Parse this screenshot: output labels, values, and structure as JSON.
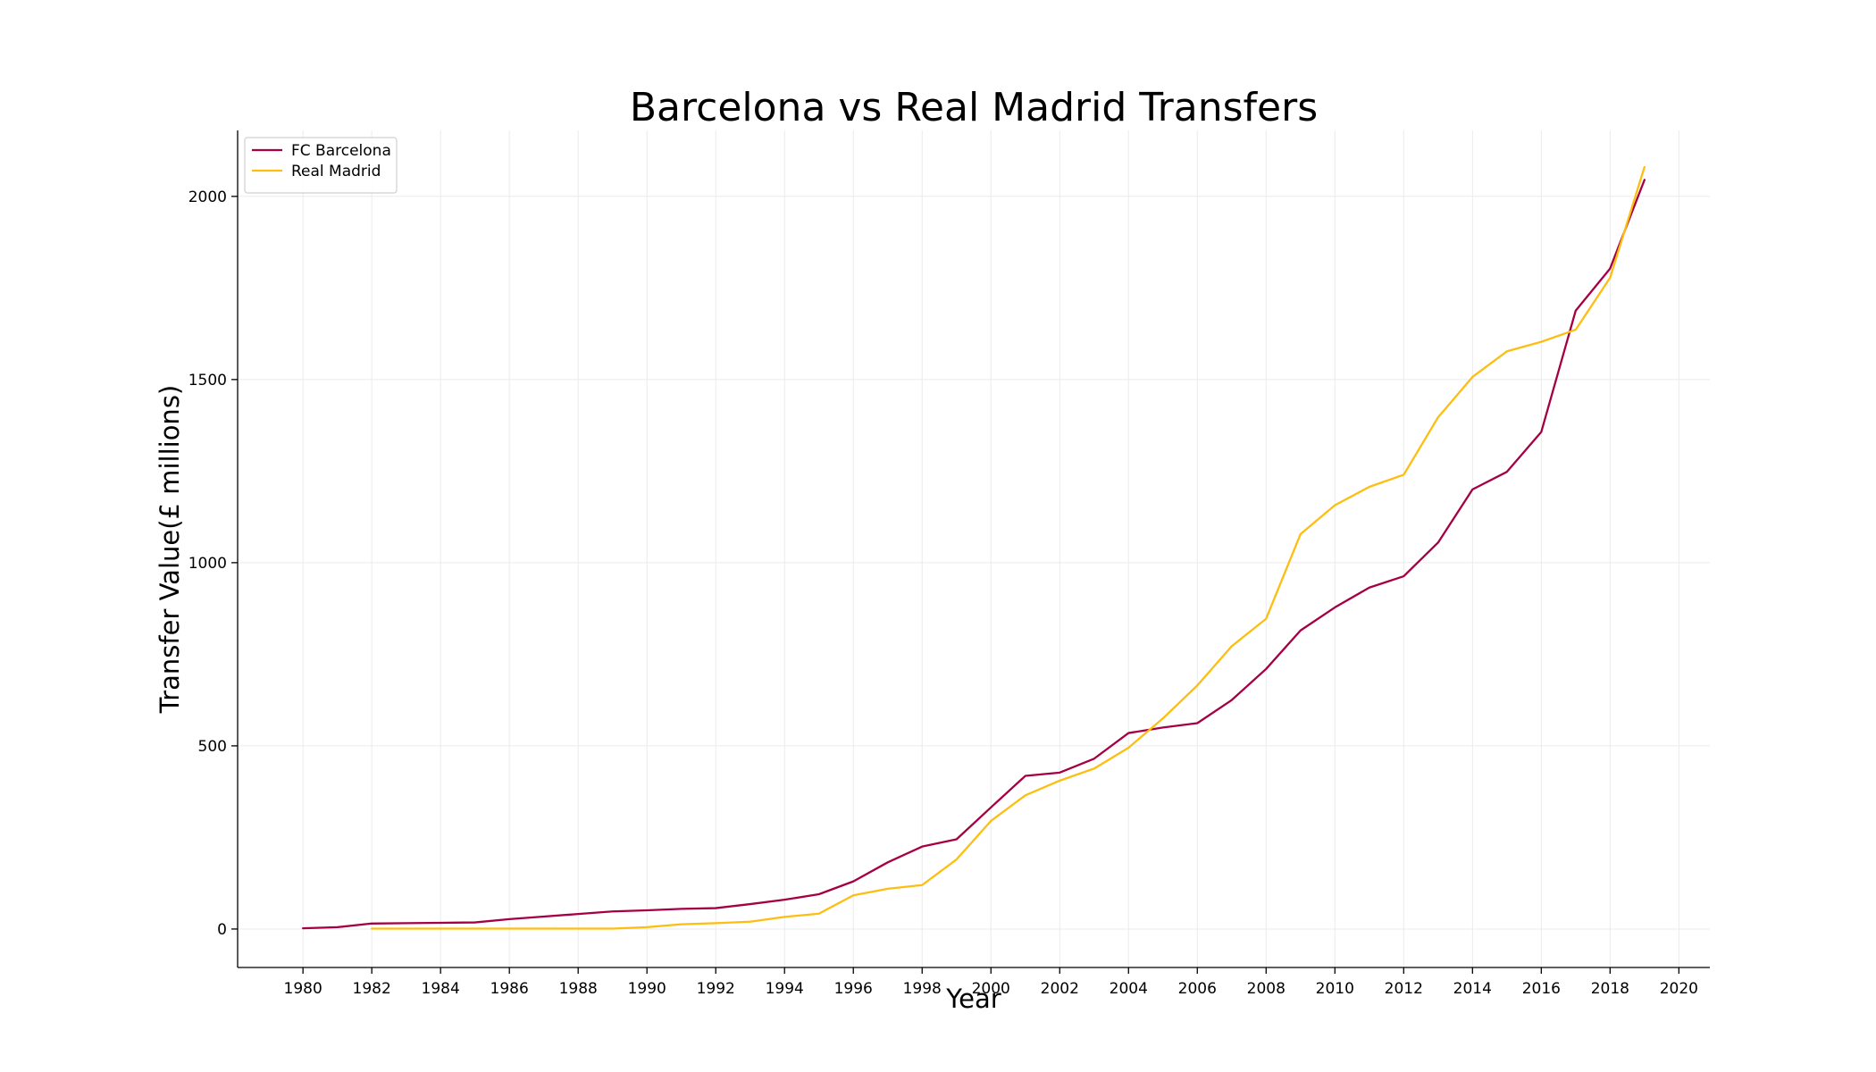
{
  "chart_data": {
    "type": "line",
    "title": "Barcelona vs Real Madrid Transfers",
    "xlabel": "Year",
    "ylabel": "Transfer Value(£ millions)",
    "xlim": [
      1978.1,
      2020.9
    ],
    "ylim": [
      -105,
      2180
    ],
    "xticks": [
      1980,
      1982,
      1984,
      1986,
      1988,
      1990,
      1992,
      1994,
      1996,
      1998,
      2000,
      2002,
      2004,
      2006,
      2008,
      2010,
      2012,
      2014,
      2016,
      2018,
      2020
    ],
    "yticks": [
      0,
      500,
      1000,
      1500,
      2000
    ],
    "grid": true,
    "legend_position": "top-left",
    "series": [
      {
        "name": "FC Barcelona",
        "color": "#a50044",
        "x": [
          1980,
          1981,
          1982,
          1983,
          1984,
          1985,
          1986,
          1987,
          1988,
          1989,
          1990,
          1991,
          1992,
          1993,
          1994,
          1995,
          1996,
          1997,
          1998,
          1999,
          2000,
          2001,
          2002,
          2003,
          2004,
          2005,
          2006,
          2007,
          2008,
          2009,
          2010,
          2011,
          2012,
          2013,
          2014,
          2015,
          2016,
          2017,
          2018,
          2019
        ],
        "values": [
          2,
          5,
          15,
          16,
          17,
          18,
          27,
          34,
          41,
          48,
          51,
          55,
          57,
          68,
          80,
          95,
          130,
          182,
          225,
          245,
          332,
          418,
          427,
          465,
          535,
          550,
          562,
          625,
          710,
          815,
          878,
          932,
          963,
          1055,
          1200,
          1248,
          1357,
          1688,
          1803,
          2045
        ]
      },
      {
        "name": "Real Madrid",
        "color": "#febe10",
        "x": [
          1982,
          1983,
          1984,
          1985,
          1986,
          1987,
          1988,
          1989,
          1990,
          1991,
          1992,
          1993,
          1994,
          1995,
          1996,
          1997,
          1998,
          1999,
          2000,
          2001,
          2002,
          2003,
          2004,
          2005,
          2006,
          2007,
          2008,
          2009,
          2010,
          2011,
          2012,
          2013,
          2014,
          2015,
          2016,
          2017,
          2018,
          2019
        ],
        "values": [
          1,
          1,
          1,
          1,
          1,
          1,
          1,
          1,
          5,
          13,
          16,
          20,
          33,
          42,
          92,
          110,
          120,
          190,
          295,
          365,
          405,
          438,
          495,
          575,
          665,
          772,
          847,
          1078,
          1157,
          1207,
          1240,
          1397,
          1507,
          1577,
          1603,
          1636,
          1778,
          2080
        ]
      }
    ]
  }
}
